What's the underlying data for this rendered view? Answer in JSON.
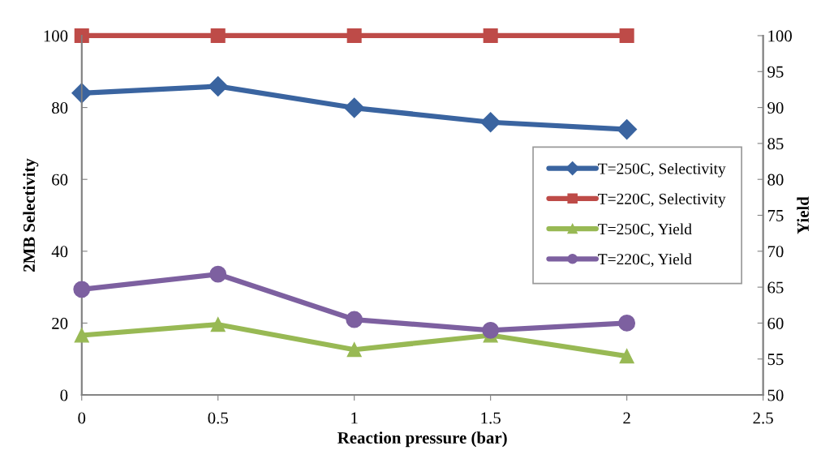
{
  "chart_data": {
    "type": "line",
    "xlabel": "Reaction pressure (bar)",
    "ylabel": "2MB Selectivity",
    "y2label": "Yield",
    "x": [
      0,
      0.5,
      1,
      1.5,
      2
    ],
    "xlim": [
      0,
      2.5
    ],
    "xticks": [
      0,
      0.5,
      1,
      1.5,
      2,
      2.5
    ],
    "ylim": [
      0,
      100
    ],
    "yticks": [
      0,
      20,
      40,
      60,
      80,
      100
    ],
    "y2lim": [
      50,
      100
    ],
    "y2ticks": [
      50,
      55,
      60,
      65,
      70,
      75,
      80,
      85,
      90,
      95,
      100
    ],
    "grid": false,
    "legend": "right",
    "line_style": "solid",
    "series": [
      {
        "name": "T=250C, Selectivity",
        "color": "#3a64a0",
        "marker": "diamond",
        "values": [
          84.0,
          85.9,
          79.9,
          75.9,
          73.9
        ]
      },
      {
        "name": "T=220C, Selectivity",
        "color": "#be4b48",
        "marker": "square",
        "values": [
          100,
          100,
          100,
          100,
          100
        ]
      },
      {
        "name": "T=250C, Yield",
        "color": "#98b954",
        "marker": "triangle",
        "axis": "y2",
        "values": [
          58.3,
          59.8,
          56.3,
          58.3,
          55.4
        ]
      },
      {
        "name": "T=220C, Yield",
        "color": "#7d60a0",
        "marker": "circle",
        "axis": "y2",
        "values": [
          64.7,
          66.8,
          60.5,
          59.0,
          60.0
        ]
      }
    ]
  }
}
